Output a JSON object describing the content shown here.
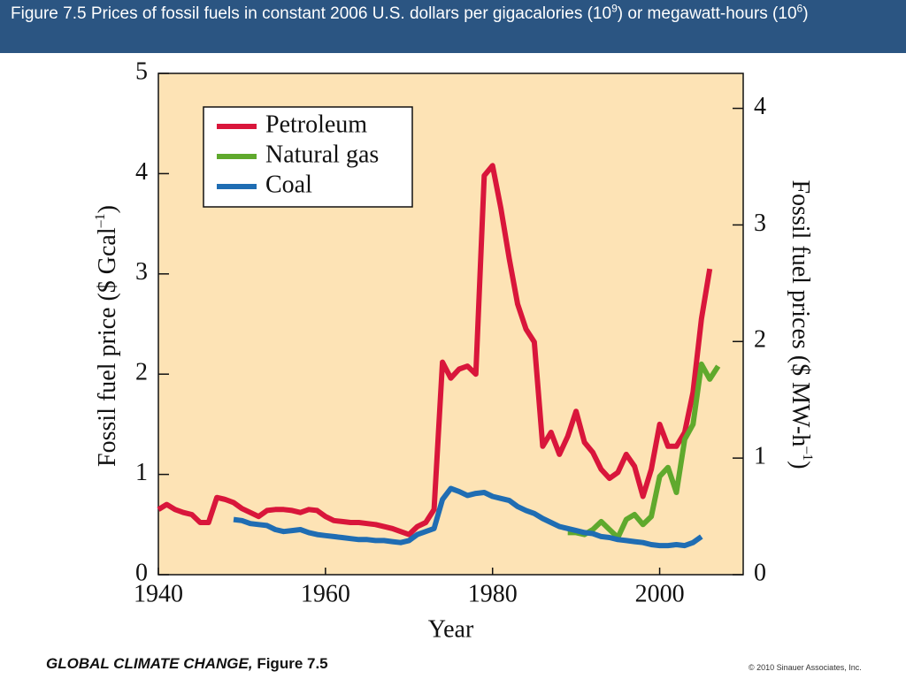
{
  "header": {
    "title": [
      "Figure 7.5  Prices of fossil fuels in constant 2006 U.S. dollars per gigacalories (10",
      "9",
      ") or megawatt-hours (10",
      "6",
      ")"
    ]
  },
  "footer": {
    "book": "GLOBAL CLIMATE CHANGE,",
    "figure": "Figure 7.5",
    "credit": "© 2010 Sinauer Associates, Inc."
  },
  "chart_data": {
    "type": "line",
    "xlabel": "Year",
    "ylabel": [
      "Fossil fuel price ($ Gcal",
      "–1",
      ")"
    ],
    "y2label": [
      "Fossil fuel prices ($ MW-h",
      "–1",
      ")"
    ],
    "xlim": [
      1940,
      2010
    ],
    "xticks": [
      1940,
      1960,
      1980,
      2000
    ],
    "ylim": [
      0,
      5
    ],
    "yticks": [
      0,
      1,
      2,
      3,
      4,
      5
    ],
    "y2lim": [
      0,
      4.3
    ],
    "y2ticks": [
      0,
      1,
      2,
      3,
      4
    ],
    "legend": "top-left",
    "series": [
      {
        "name": "Petroleum",
        "color": "#d9163b",
        "x": [
          1940,
          1941,
          1942,
          1943,
          1944,
          1945,
          1946,
          1947,
          1948,
          1949,
          1950,
          1951,
          1952,
          1953,
          1954,
          1955,
          1956,
          1957,
          1958,
          1959,
          1960,
          1961,
          1962,
          1963,
          1964,
          1965,
          1966,
          1967,
          1968,
          1969,
          1970,
          1971,
          1972,
          1973,
          1974,
          1975,
          1976,
          1977,
          1978,
          1979,
          1980,
          1981,
          1982,
          1983,
          1984,
          1985,
          1986,
          1987,
          1988,
          1989,
          1990,
          1991,
          1992,
          1993,
          1994,
          1995,
          1996,
          1997,
          1998,
          1999,
          2000,
          2001,
          2002,
          2003,
          2004,
          2005,
          2006
        ],
        "values": [
          0.65,
          0.7,
          0.65,
          0.62,
          0.6,
          0.52,
          0.52,
          0.77,
          0.75,
          0.72,
          0.66,
          0.62,
          0.58,
          0.64,
          0.65,
          0.65,
          0.64,
          0.62,
          0.65,
          0.64,
          0.58,
          0.54,
          0.53,
          0.52,
          0.52,
          0.51,
          0.5,
          0.48,
          0.46,
          0.43,
          0.4,
          0.48,
          0.52,
          0.65,
          2.12,
          1.96,
          2.05,
          2.08,
          2.0,
          3.98,
          4.08,
          3.65,
          3.15,
          2.7,
          2.45,
          2.32,
          1.28,
          1.42,
          1.2,
          1.38,
          1.63,
          1.32,
          1.22,
          1.05,
          0.96,
          1.02,
          1.2,
          1.08,
          0.78,
          1.05,
          1.5,
          1.28,
          1.28,
          1.42,
          1.82,
          2.55,
          3.05
        ]
      },
      {
        "name": "Natural gas",
        "color": "#5fa92d",
        "x": [
          1989,
          1990,
          1991,
          1992,
          1993,
          1994,
          1995,
          1996,
          1997,
          1998,
          1999,
          2000,
          2001,
          2002,
          2003,
          2004,
          2005,
          2006,
          2007
        ],
        "values": [
          0.42,
          0.42,
          0.4,
          0.45,
          0.53,
          0.45,
          0.37,
          0.55,
          0.6,
          0.5,
          0.58,
          0.98,
          1.07,
          0.82,
          1.35,
          1.5,
          2.1,
          1.95,
          2.08
        ]
      },
      {
        "name": "Coal",
        "color": "#1f6db3",
        "x": [
          1949,
          1950,
          1951,
          1952,
          1953,
          1954,
          1955,
          1956,
          1957,
          1958,
          1959,
          1960,
          1961,
          1962,
          1963,
          1964,
          1965,
          1966,
          1967,
          1968,
          1969,
          1970,
          1971,
          1972,
          1973,
          1974,
          1975,
          1976,
          1977,
          1978,
          1979,
          1980,
          1981,
          1982,
          1983,
          1984,
          1985,
          1986,
          1987,
          1988,
          1989,
          1990,
          1991,
          1992,
          1993,
          1994,
          1995,
          1996,
          1997,
          1998,
          1999,
          2000,
          2001,
          2002,
          2003,
          2004,
          2005
        ],
        "values": [
          0.55,
          0.54,
          0.51,
          0.5,
          0.49,
          0.45,
          0.43,
          0.44,
          0.45,
          0.42,
          0.4,
          0.39,
          0.38,
          0.37,
          0.36,
          0.35,
          0.35,
          0.34,
          0.34,
          0.33,
          0.32,
          0.34,
          0.4,
          0.43,
          0.46,
          0.75,
          0.86,
          0.83,
          0.79,
          0.81,
          0.82,
          0.78,
          0.76,
          0.74,
          0.68,
          0.64,
          0.61,
          0.56,
          0.52,
          0.48,
          0.46,
          0.44,
          0.42,
          0.41,
          0.38,
          0.37,
          0.35,
          0.34,
          0.33,
          0.32,
          0.3,
          0.29,
          0.29,
          0.3,
          0.29,
          0.32,
          0.38
        ]
      }
    ]
  }
}
